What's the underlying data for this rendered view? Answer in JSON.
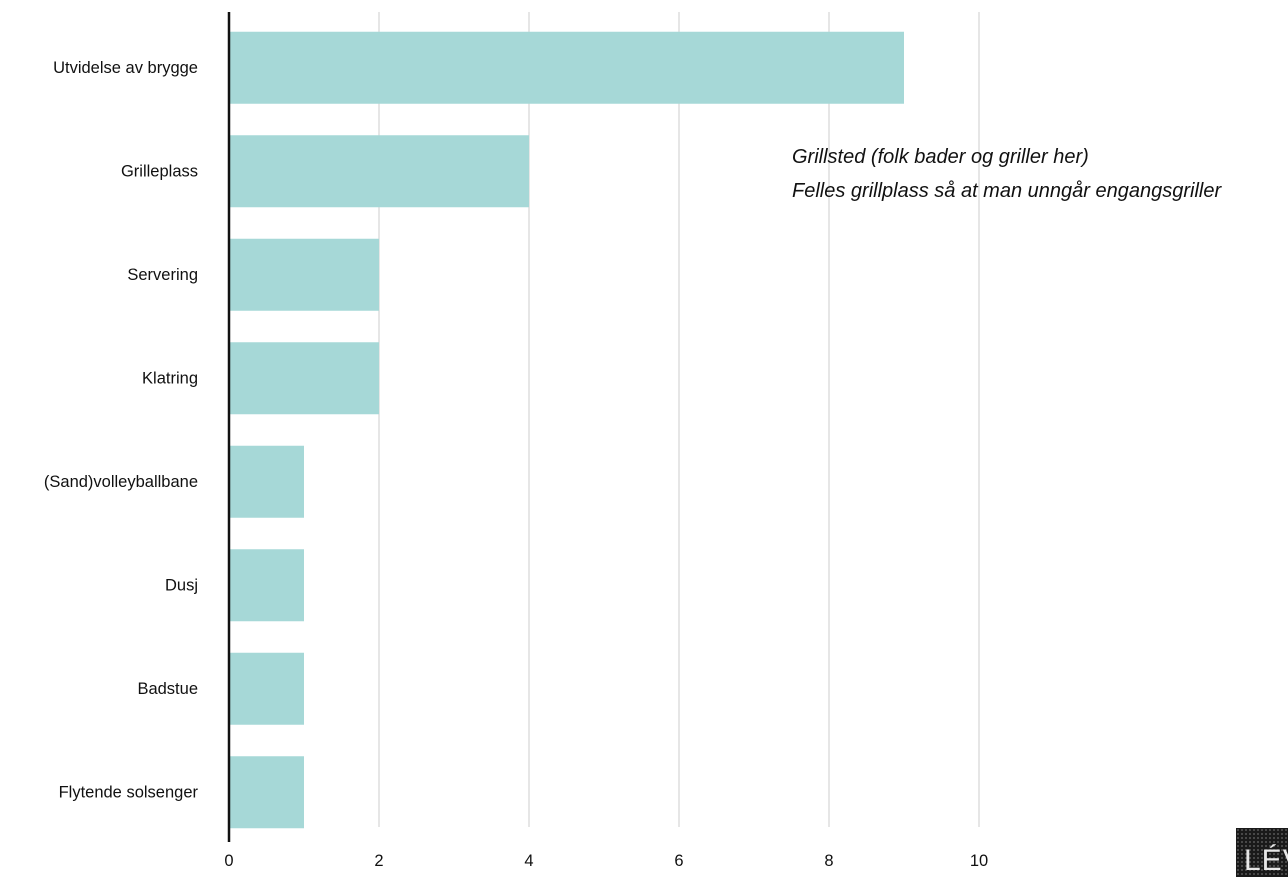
{
  "chart_data": {
    "type": "bar",
    "orientation": "horizontal",
    "categories": [
      "Utvidelse av brygge",
      "Grilleplass",
      "Servering",
      "Klatring",
      "(Sand)volleyballbane",
      "Dusj",
      "Badstue",
      "Flytende solsenger"
    ],
    "values": [
      9,
      4,
      2,
      2,
      1,
      1,
      1,
      1
    ],
    "xlim": [
      0,
      10
    ],
    "xticks": [
      0,
      2,
      4,
      6,
      8,
      10
    ],
    "grid": "vertical",
    "bar_color": "#a6d8d7",
    "gridline_color": "#d9d9d9",
    "axis_color": "#111111",
    "annotations": [
      "Grillsted (folk bader og griller her)",
      "Felles grillplass så at man unngår engangsgriller"
    ]
  },
  "logo": {
    "text": "LÉV"
  }
}
